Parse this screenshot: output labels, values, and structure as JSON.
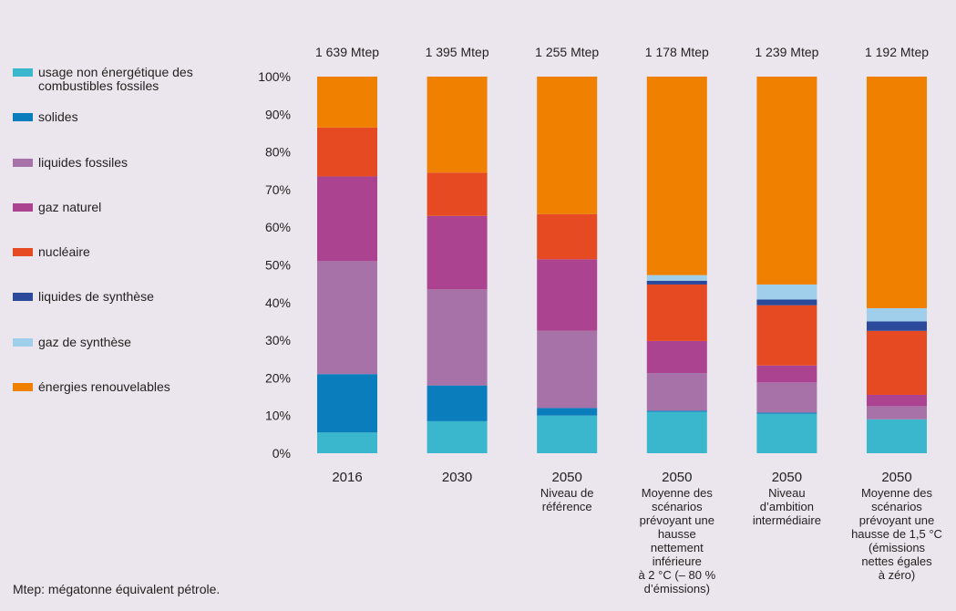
{
  "legend": {
    "items": [
      {
        "label": "usage non énergétique des combustibles fossiles",
        "color": "#3ab7cc"
      },
      {
        "label": "solides",
        "color": "#0a7dbd"
      },
      {
        "label": "liquides fossiles",
        "color": "#a772a8"
      },
      {
        "label": "gaz naturel",
        "color": "#ab4390"
      },
      {
        "label": "nucléaire",
        "color": "#e54a22"
      },
      {
        "label": "liquides de synthèse",
        "color": "#2b4a9b"
      },
      {
        "label": "gaz de synthèse",
        "color": "#9fcfea"
      },
      {
        "label": "énergies renouvelables",
        "color": "#f08000"
      }
    ]
  },
  "note": "Mtep: mégatonne équivalent pétrole.",
  "chart_data": {
    "type": "bar",
    "stacked": true,
    "ylim": [
      0,
      100
    ],
    "yticks": [
      "0%",
      "10%",
      "20%",
      "30%",
      "40%",
      "50%",
      "60%",
      "70%",
      "80%",
      "90%",
      "100%"
    ],
    "totals": [
      "1 639 Mtep",
      "1 395 Mtep",
      "1 255 Mtep",
      "1 178 Mtep",
      "1 239 Mtep",
      "1 192 Mtep"
    ],
    "categories": [
      [
        "2016"
      ],
      [
        "2030"
      ],
      [
        "2050",
        "Niveau de",
        "référence"
      ],
      [
        "2050",
        "Moyenne des",
        "scénarios",
        "prévoyant une",
        "hausse",
        "nettement",
        "inférieure",
        "à 2 °C (– 80 %",
        "d’émissions)"
      ],
      [
        "2050",
        "Niveau",
        "d’ambition",
        "intermédiaire"
      ],
      [
        "2050",
        "Moyenne des",
        "scénarios",
        "prévoyant une",
        "hausse de 1,5 °C",
        "(émissions",
        "nettes égales",
        "à zéro)"
      ]
    ],
    "series": [
      {
        "name": "usage non énergétique des combustibles fossiles",
        "values": [
          5.5,
          8.5,
          10,
          11,
          10.5,
          9
        ]
      },
      {
        "name": "solides",
        "values": [
          15.5,
          9.5,
          2,
          0.3,
          0.3,
          0
        ]
      },
      {
        "name": "liquides fossiles",
        "values": [
          30,
          25.5,
          20.5,
          10,
          8,
          3.5
        ]
      },
      {
        "name": "gaz naturel",
        "values": [
          22.5,
          19.5,
          19,
          8.5,
          4.5,
          3
        ]
      },
      {
        "name": "nucléaire",
        "values": [
          13,
          11.5,
          12,
          15,
          16,
          17
        ]
      },
      {
        "name": "liquides de synthèse",
        "values": [
          0,
          0,
          0,
          1,
          1.5,
          2.5
        ]
      },
      {
        "name": "gaz de synthèse",
        "values": [
          0,
          0,
          0,
          1.5,
          4,
          3.5
        ]
      },
      {
        "name": "énergies renouvelables",
        "values": [
          13.5,
          25.5,
          36.5,
          52.7,
          55.2,
          61.5
        ]
      }
    ]
  }
}
